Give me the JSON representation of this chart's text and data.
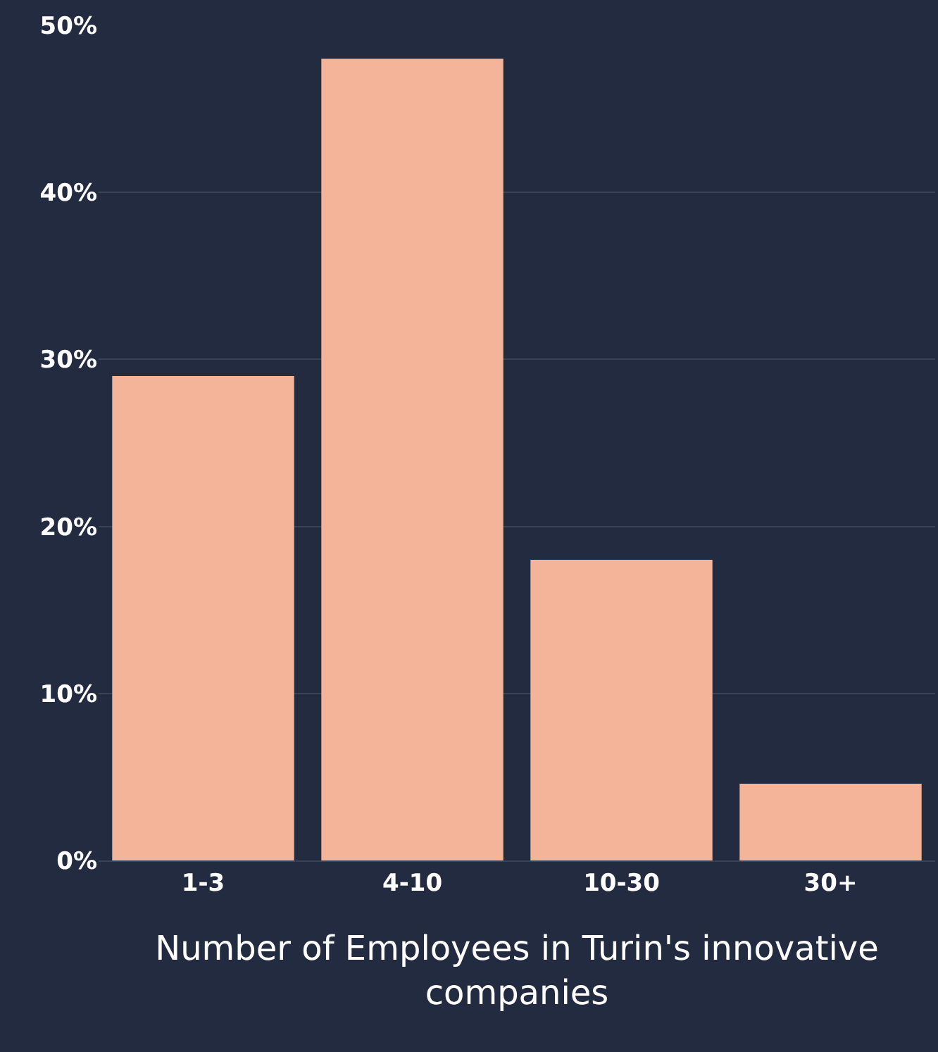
{
  "chart_data": {
    "type": "bar",
    "xlabel": "Number of Employees in Turin's innovative companies",
    "categories": [
      "1-3",
      "4-10",
      "10-30",
      "30+"
    ],
    "values": [
      29,
      48,
      18,
      4.6
    ],
    "color": "#f4b49a",
    "ylim": [
      0,
      50
    ],
    "yticks": [
      {
        "value": 0,
        "label": "0%"
      },
      {
        "value": 10,
        "label": "10%"
      },
      {
        "value": 20,
        "label": "20%"
      },
      {
        "value": 30,
        "label": "30%"
      },
      {
        "value": 40,
        "label": "40%"
      },
      {
        "value": 50,
        "label": "50%"
      }
    ],
    "grid": "y"
  }
}
